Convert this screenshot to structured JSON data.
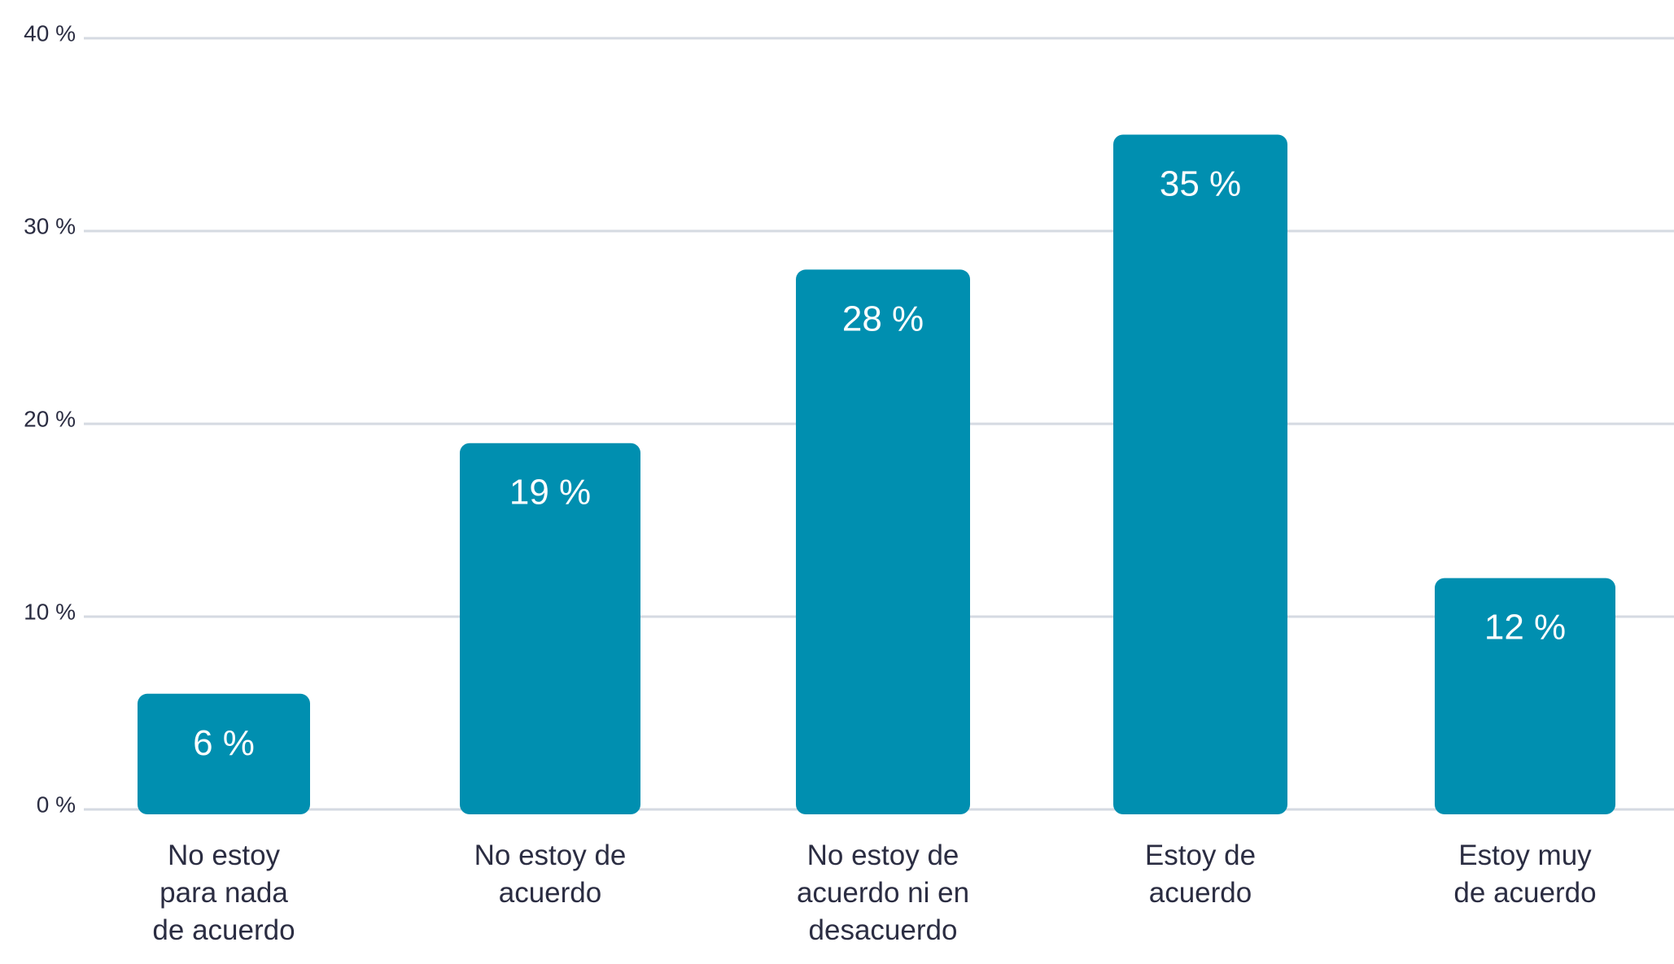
{
  "chart_data": {
    "type": "bar",
    "categories": [
      [
        "No estoy",
        "para nada",
        "de acuerdo"
      ],
      [
        "No estoy de",
        "acuerdo"
      ],
      [
        "No estoy de",
        "acuerdo ni en",
        "desacuerdo"
      ],
      [
        "Estoy de",
        "acuerdo"
      ],
      [
        "Estoy muy",
        "de acuerdo"
      ]
    ],
    "values": [
      6,
      19,
      28,
      35,
      12
    ],
    "data_labels": [
      "6 %",
      "19 %",
      "28 %",
      "35 %",
      "12 %"
    ],
    "yticks": [
      0,
      10,
      20,
      30,
      40
    ],
    "ytick_labels": [
      "0 %",
      "10 %",
      "20 %",
      "30 %",
      "40 %"
    ],
    "ylim": [
      0,
      40
    ],
    "grid": true,
    "title": "",
    "xlabel": "",
    "ylabel": "",
    "colors": {
      "bar": "#008fb0",
      "grid": "#d5dae2",
      "text": "#2b2d42",
      "data_label": "#ffffff"
    }
  }
}
